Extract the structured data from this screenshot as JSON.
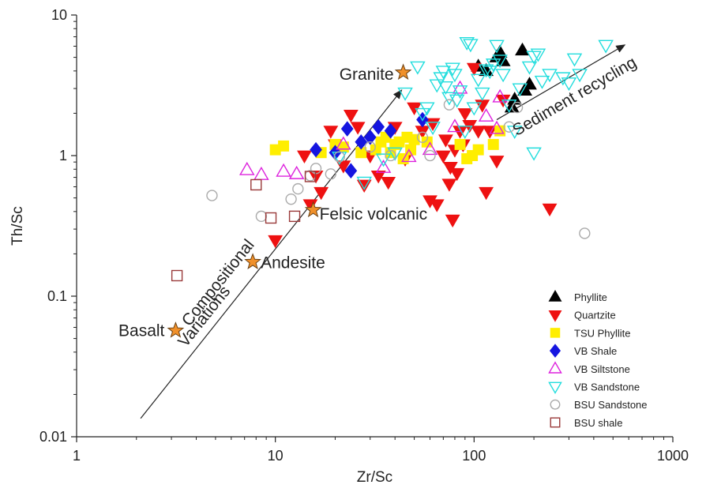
{
  "chart_data": {
    "type": "scatter",
    "title": "",
    "xlabel": "Zr/Sc",
    "ylabel": "Th/Sc",
    "xscale": "log",
    "yscale": "log",
    "xlim": [
      1,
      1000
    ],
    "ylim": [
      0.01,
      10
    ],
    "x_ticks": [
      1,
      10,
      100,
      1000
    ],
    "y_ticks": [
      0.01,
      0.1,
      1,
      10
    ],
    "x_tick_labels": [
      "1",
      "10",
      "100",
      "1000"
    ],
    "y_tick_labels": [
      "0.01",
      "0.1",
      "1",
      "10"
    ],
    "grid": false,
    "legend_position": "bottom-right",
    "series": [
      {
        "name": "Phyllite",
        "marker": "triangle-up",
        "filled": true,
        "color": "#000000",
        "x": [
          105,
          115,
          130,
          135,
          140,
          175,
          180,
          190,
          155,
          160
        ],
        "y": [
          4.3,
          4.0,
          5.0,
          5.4,
          4.7,
          5.6,
          2.9,
          3.2,
          2.2,
          2.5
        ]
      },
      {
        "name": "Quartzite",
        "marker": "triangle-down",
        "filled": true,
        "color": "#ee1111",
        "x": [
          10,
          14,
          15,
          16,
          17,
          19,
          20,
          22,
          24,
          26,
          28,
          30,
          33,
          37,
          40,
          45,
          50,
          55,
          60,
          62,
          65,
          70,
          72,
          75,
          76,
          78,
          80,
          82,
          85,
          88,
          90,
          95,
          100,
          105,
          110,
          115,
          120,
          130,
          140,
          240
        ],
        "y": [
          0.25,
          1.0,
          0.45,
          0.72,
          0.55,
          1.5,
          1.2,
          0.85,
          1.95,
          1.6,
          0.62,
          1.0,
          0.72,
          0.65,
          1.6,
          0.95,
          2.2,
          1.5,
          0.48,
          1.7,
          0.45,
          1.0,
          1.3,
          0.63,
          0.83,
          0.35,
          1.1,
          0.75,
          1.5,
          1.2,
          2.0,
          1.65,
          4.2,
          1.5,
          2.3,
          0.55,
          1.5,
          0.92,
          2.5,
          0.42
        ]
      },
      {
        "name": "TSU Phyllite",
        "marker": "square",
        "filled": true,
        "color": "#ffee00",
        "x": [
          10,
          11,
          17,
          20,
          22,
          27,
          32,
          34,
          36,
          38,
          40,
          42,
          44,
          46,
          48,
          50,
          58,
          85,
          92,
          98,
          105,
          125,
          135
        ],
        "y": [
          1.1,
          1.17,
          1.05,
          1.2,
          1.15,
          1.05,
          1.1,
          1.25,
          1.35,
          1.05,
          1.2,
          1.25,
          0.95,
          1.35,
          1.1,
          1.3,
          1.25,
          1.2,
          0.95,
          1.0,
          1.1,
          1.2,
          1.5
        ]
      },
      {
        "name": "VB Shale",
        "marker": "diamond",
        "filled": true,
        "color": "#1515e0",
        "x": [
          16,
          20,
          23,
          24,
          27,
          30,
          33,
          38,
          55
        ],
        "y": [
          1.1,
          1.05,
          1.55,
          0.78,
          1.25,
          1.35,
          1.6,
          1.5,
          1.8
        ]
      },
      {
        "name": "VB Siltstone",
        "marker": "triangle-up",
        "filled": false,
        "color": "#dd22dd",
        "x": [
          7.2,
          8.5,
          11,
          12.8,
          22,
          35,
          47,
          60,
          80,
          85,
          115,
          130,
          135
        ],
        "y": [
          0.79,
          0.73,
          0.77,
          0.74,
          1.2,
          0.82,
          0.98,
          1.1,
          1.6,
          3.0,
          1.9,
          1.55,
          2.6
        ]
      },
      {
        "name": "VB Sandstone",
        "marker": "triangle-down",
        "filled": false,
        "color": "#22dddd",
        "x": [
          21,
          28,
          35,
          40,
          45,
          52,
          55,
          58,
          62,
          65,
          68,
          70,
          72,
          75,
          78,
          80,
          82,
          85,
          90,
          92,
          96,
          100,
          105,
          110,
          115,
          120,
          125,
          130,
          135,
          140,
          150,
          160,
          170,
          190,
          200,
          210,
          220,
          240,
          280,
          300,
          320,
          340,
          460,
          200
        ],
        "y": [
          0.98,
          0.65,
          0.95,
          1.05,
          2.8,
          4.3,
          2.0,
          2.2,
          1.6,
          3.2,
          3.6,
          4.0,
          3.1,
          2.6,
          4.2,
          3.8,
          2.5,
          2.9,
          1.5,
          6.4,
          6.2,
          2.2,
          3.5,
          2.8,
          4.1,
          4.0,
          4.5,
          6.1,
          4.8,
          3.8,
          2.3,
          1.5,
          3.0,
          4.3,
          5.1,
          5.3,
          3.4,
          3.8,
          3.6,
          3.3,
          4.9,
          3.8,
          6.1,
          1.05
        ]
      },
      {
        "name": "BSU Sandstone",
        "marker": "circle",
        "filled": false,
        "color": "#aaaaaa",
        "x": [
          4.8,
          8.5,
          12,
          13,
          15,
          16,
          19,
          21,
          30,
          38,
          55,
          60,
          75,
          150,
          165,
          360
        ],
        "y": [
          0.52,
          0.37,
          0.49,
          0.58,
          0.72,
          0.81,
          0.74,
          0.98,
          1.15,
          1.0,
          1.35,
          1.0,
          2.3,
          1.6,
          2.2,
          0.28
        ]
      },
      {
        "name": "BSU shale",
        "marker": "square",
        "filled": false,
        "color": "#9a3a3a",
        "x": [
          3.2,
          8,
          9.5,
          12.5,
          15
        ],
        "y": [
          0.14,
          0.62,
          0.36,
          0.37,
          0.71
        ]
      }
    ],
    "reference_points": [
      {
        "label": "Basalt",
        "x": 3.15,
        "y": 0.057
      },
      {
        "label": "Andesite",
        "x": 7.7,
        "y": 0.175
      },
      {
        "label": "Felsic volcanic",
        "x": 15.5,
        "y": 0.41
      },
      {
        "label": "Granite",
        "x": 44,
        "y": 3.9
      }
    ],
    "annotations": [
      {
        "text": "Compositional",
        "type": "arrow-label"
      },
      {
        "text": "Variations",
        "type": "arrow-label"
      },
      {
        "text": "Sediment recycling",
        "type": "arrow-label"
      }
    ],
    "trend_arrows": [
      {
        "name": "compositional-variations-arrow",
        "from": [
          2.1,
          0.0135
        ],
        "to": [
          43,
          2.9
        ]
      },
      {
        "name": "sediment-recycling-arrow",
        "from": [
          130,
          1.8
        ],
        "to": [
          570,
          6.1
        ]
      }
    ],
    "colors": {
      "reference_star": "#f0902a",
      "reference_star_stroke": "#6a4012",
      "axis": "#222222"
    }
  }
}
